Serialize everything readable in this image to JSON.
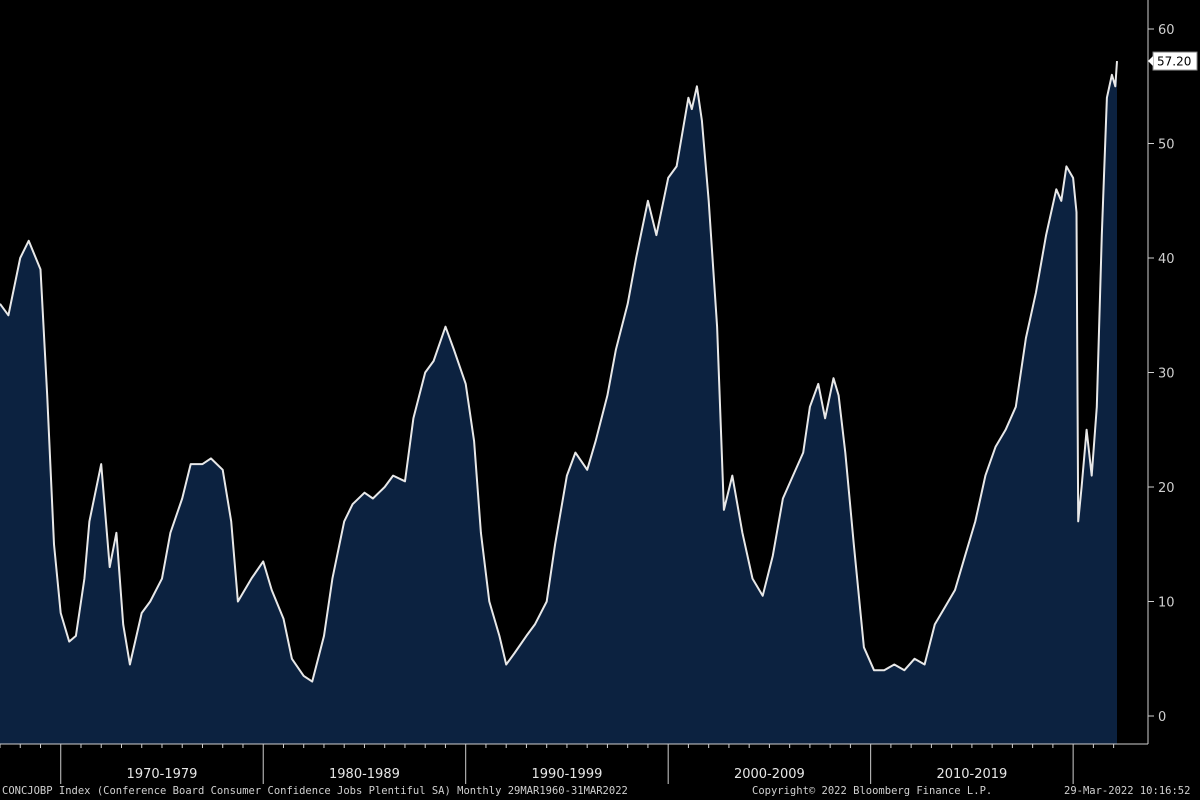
{
  "colors": {
    "background": "#000000",
    "area_fill": "#0c2240",
    "line": "#e8e8e8",
    "axis": "#cfcfcf",
    "label_box": "#ffffff"
  },
  "chart_data": {
    "type": "area",
    "title": "",
    "xlabel": "",
    "ylabel": "",
    "ylim": [
      0,
      60
    ],
    "yticks": [
      0,
      10,
      20,
      30,
      40,
      50,
      60
    ],
    "y_axis_side": "right",
    "grid": false,
    "last_value_label": "57.20",
    "x_start": "1967-01",
    "x_end": "2022-03",
    "decade_labels": [
      "1970-1979",
      "1980-1989",
      "1990-1999",
      "2000-2009",
      "2010-2019"
    ],
    "series": [
      {
        "points": [
          [
            "1967-01",
            36
          ],
          [
            "1967-06",
            35
          ],
          [
            "1968-01",
            40
          ],
          [
            "1968-06",
            41.5
          ],
          [
            "1969-01",
            39
          ],
          [
            "1969-05",
            28
          ],
          [
            "1969-09",
            15
          ],
          [
            "1970-01",
            9
          ],
          [
            "1970-06",
            6.5
          ],
          [
            "1970-10",
            7
          ],
          [
            "1971-03",
            12
          ],
          [
            "1971-06",
            17
          ],
          [
            "1972-01",
            22
          ],
          [
            "1972-06",
            13
          ],
          [
            "1972-10",
            16
          ],
          [
            "1973-02",
            8
          ],
          [
            "1973-06",
            4.5
          ],
          [
            "1974-01",
            9
          ],
          [
            "1974-06",
            10
          ],
          [
            "1975-01",
            12
          ],
          [
            "1975-06",
            16
          ],
          [
            "1976-01",
            19
          ],
          [
            "1976-06",
            22
          ],
          [
            "1977-01",
            22
          ],
          [
            "1977-06",
            22.5
          ],
          [
            "1978-01",
            21.5
          ],
          [
            "1978-06",
            17
          ],
          [
            "1978-10",
            10
          ],
          [
            "1979-06",
            12
          ],
          [
            "1980-01",
            13.5
          ],
          [
            "1980-06",
            11
          ],
          [
            "1981-01",
            8.5
          ],
          [
            "1981-06",
            5
          ],
          [
            "1982-01",
            3.5
          ],
          [
            "1982-06",
            3
          ],
          [
            "1983-01",
            7
          ],
          [
            "1983-06",
            12
          ],
          [
            "1984-01",
            17
          ],
          [
            "1984-06",
            18.5
          ],
          [
            "1985-01",
            19.5
          ],
          [
            "1985-06",
            19
          ],
          [
            "1986-01",
            20
          ],
          [
            "1986-06",
            21
          ],
          [
            "1987-01",
            20.5
          ],
          [
            "1987-06",
            26
          ],
          [
            "1988-01",
            30
          ],
          [
            "1988-06",
            31
          ],
          [
            "1989-01",
            34
          ],
          [
            "1989-06",
            32
          ],
          [
            "1990-01",
            29
          ],
          [
            "1990-06",
            24
          ],
          [
            "1990-10",
            16
          ],
          [
            "1991-03",
            10
          ],
          [
            "1991-09",
            7
          ],
          [
            "1992-01",
            4.5
          ],
          [
            "1992-06",
            5.5
          ],
          [
            "1993-01",
            7
          ],
          [
            "1993-06",
            8
          ],
          [
            "1994-01",
            10
          ],
          [
            "1994-06",
            15
          ],
          [
            "1995-01",
            21
          ],
          [
            "1995-06",
            23
          ],
          [
            "1996-01",
            21.5
          ],
          [
            "1996-06",
            24
          ],
          [
            "1997-01",
            28
          ],
          [
            "1997-06",
            32
          ],
          [
            "1998-01",
            36
          ],
          [
            "1998-06",
            40
          ],
          [
            "1999-01",
            45
          ],
          [
            "1999-06",
            42
          ],
          [
            "2000-01",
            47
          ],
          [
            "2000-06",
            48
          ],
          [
            "2001-01",
            54
          ],
          [
            "2001-03",
            53
          ],
          [
            "2001-06",
            55
          ],
          [
            "2001-09",
            52
          ],
          [
            "2002-01",
            45
          ],
          [
            "2002-06",
            34
          ],
          [
            "2002-10",
            18
          ],
          [
            "2003-03",
            21
          ],
          [
            "2003-09",
            16
          ],
          [
            "2004-03",
            12
          ],
          [
            "2004-09",
            10.5
          ],
          [
            "2005-03",
            14
          ],
          [
            "2005-09",
            19
          ],
          [
            "2006-03",
            21
          ],
          [
            "2006-09",
            23
          ],
          [
            "2007-01",
            27
          ],
          [
            "2007-06",
            29
          ],
          [
            "2007-10",
            26
          ],
          [
            "2008-03",
            29.5
          ],
          [
            "2008-06",
            28
          ],
          [
            "2008-10",
            23
          ],
          [
            "2009-03",
            15
          ],
          [
            "2009-09",
            6
          ],
          [
            "2010-03",
            4
          ],
          [
            "2010-09",
            4
          ],
          [
            "2011-03",
            4.5
          ],
          [
            "2011-09",
            4
          ],
          [
            "2012-03",
            5
          ],
          [
            "2012-09",
            4.5
          ],
          [
            "2013-03",
            8
          ],
          [
            "2013-09",
            9.5
          ],
          [
            "2014-03",
            11
          ],
          [
            "2014-09",
            14
          ],
          [
            "2015-03",
            17
          ],
          [
            "2015-09",
            21
          ],
          [
            "2016-03",
            23.5
          ],
          [
            "2016-09",
            25
          ],
          [
            "2017-03",
            27
          ],
          [
            "2017-09",
            33
          ],
          [
            "2018-03",
            37
          ],
          [
            "2018-09",
            42
          ],
          [
            "2019-03",
            46
          ],
          [
            "2019-06",
            45
          ],
          [
            "2019-09",
            48
          ],
          [
            "2020-01",
            47
          ],
          [
            "2020-03",
            44
          ],
          [
            "2020-04",
            17
          ],
          [
            "2020-06",
            20
          ],
          [
            "2020-09",
            25
          ],
          [
            "2020-12",
            21
          ],
          [
            "2021-03",
            27
          ],
          [
            "2021-06",
            42
          ],
          [
            "2021-09",
            54
          ],
          [
            "2021-12",
            56
          ],
          [
            "2022-02",
            55
          ],
          [
            "2022-03",
            57.2
          ]
        ]
      }
    ]
  },
  "footer": {
    "left": "CONCJOBP Index (Conference Board Consumer Confidence Jobs Plentiful SA)  Monthly 29MAR1960-31MAR2022",
    "copyright": "Copyright© 2022 Bloomberg Finance L.P.",
    "timestamp": "29-Mar-2022 10:16:52"
  }
}
